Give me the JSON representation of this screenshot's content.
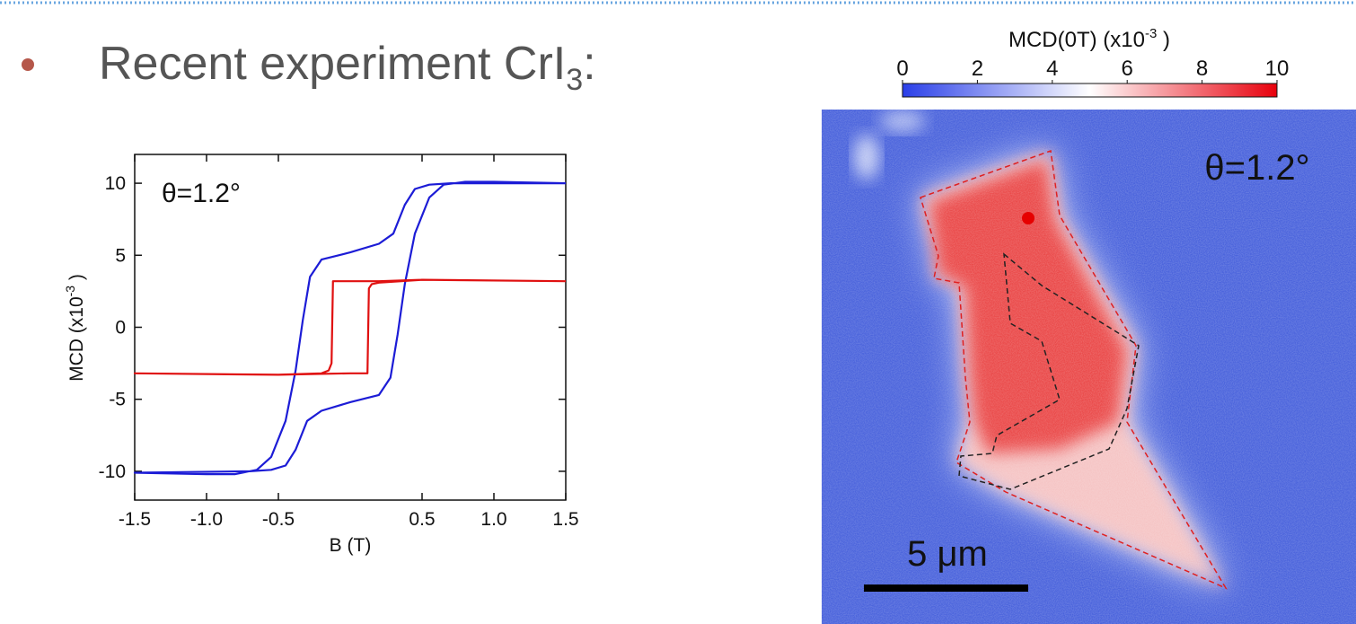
{
  "slide": {
    "bullet_text": "Recent experiment CrI",
    "bullet_subscript": "3",
    "bullet_suffix": ":"
  },
  "chart_data": {
    "type": "line",
    "annotation": "θ=1.2°",
    "xlabel": "B (T)",
    "ylabel": "MCD (x10",
    "ylabel_superscript": "-3",
    "ylabel_suffix": " )",
    "xlim": [
      -1.5,
      1.5
    ],
    "ylim": [
      -12,
      12
    ],
    "xticks": [
      -1.5,
      {
        "value": -1,
        "label": "-1.0"
      },
      -0.5,
      0.5,
      {
        "value": 1,
        "label": "1.0"
      },
      1.5
    ],
    "yticks": [
      -10,
      -5,
      0,
      5,
      10
    ],
    "series": [
      {
        "color": "#1c1cd6",
        "x": [
          1.5,
          0.7,
          0.55,
          0.45,
          0.38,
          0.3,
          0.2,
          0.0,
          -0.2,
          -0.28,
          -0.33,
          -0.38,
          -0.45,
          -0.55,
          -0.65,
          -0.8,
          -1.0,
          -1.5,
          -1.5,
          -0.7,
          -0.55,
          -0.45,
          -0.38,
          -0.3,
          -0.2,
          0.0,
          0.2,
          0.28,
          0.33,
          0.38,
          0.45,
          0.55,
          0.65,
          0.8,
          1.0,
          1.5
        ],
        "values": [
          10,
          10,
          9.9,
          9.6,
          8.5,
          6.5,
          5.8,
          5.2,
          4.7,
          3.5,
          0.5,
          -3,
          -6.5,
          -9,
          -9.9,
          -10.2,
          -10.2,
          -10.1,
          -10.1,
          -10,
          -9.9,
          -9.6,
          -8.5,
          -6.5,
          -5.8,
          -5.2,
          -4.7,
          -3.5,
          -0.5,
          3,
          6.5,
          9,
          9.9,
          10.1,
          10.1,
          10
        ]
      },
      {
        "color": "#e01010",
        "x": [
          1.5,
          0.5,
          0.2,
          -0.12,
          -0.13,
          -0.15,
          -0.2,
          -0.5,
          -1.5,
          -1.5,
          -0.5,
          0.0,
          0.12,
          0.13,
          0.15,
          0.2,
          0.5,
          1.5
        ],
        "values": [
          3.2,
          3.3,
          3.2,
          3.2,
          -2.5,
          -3.0,
          -3.2,
          -3.3,
          -3.2,
          -3.2,
          -3.3,
          -3.2,
          -3.2,
          2.7,
          3.0,
          3.1,
          3.3,
          3.2
        ]
      }
    ]
  },
  "image_panel": {
    "colorbar_title": "MCD(0T) (x10",
    "colorbar_title_superscript": "-3",
    "colorbar_title_suffix": " )",
    "clim": [
      0,
      10
    ],
    "colorbar_ticks": [
      0,
      2,
      4,
      6,
      8,
      10
    ],
    "colorbar_colors": [
      "#2a3fe8",
      "#ffffff",
      "#e8000c"
    ],
    "annotation": "θ=1.2°",
    "scale_bar_label": "5 μm"
  }
}
